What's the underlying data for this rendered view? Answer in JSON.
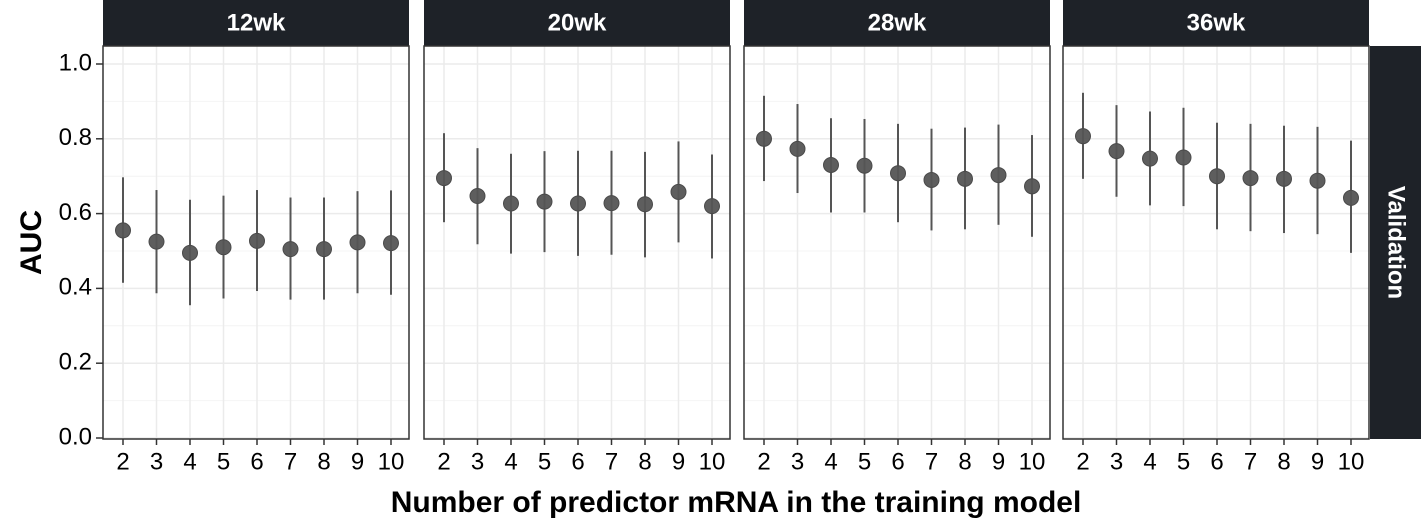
{
  "chart_data": {
    "type": "scatter",
    "title": "",
    "xlabel": "Number of predictor mRNA in the training model",
    "ylabel": "AUC",
    "row_strip": "Validation",
    "ylim": [
      0,
      1.05
    ],
    "y_ticks": [
      "0.0",
      "0.2",
      "0.4",
      "0.6",
      "0.8",
      "1.0"
    ],
    "categories": [
      "2",
      "3",
      "4",
      "5",
      "6",
      "7",
      "8",
      "9",
      "10"
    ],
    "grid": true,
    "error_bars": true,
    "colors": {
      "point": "#555555",
      "strip_bg": "#1e2228",
      "strip_text": "#ffffff",
      "grid": "#ebebeb"
    },
    "panels": [
      {
        "label": "12wk",
        "values": [
          0.555,
          0.525,
          0.495,
          0.51,
          0.527,
          0.505,
          0.505,
          0.523,
          0.521
        ],
        "lower": [
          0.415,
          0.387,
          0.355,
          0.373,
          0.393,
          0.37,
          0.37,
          0.387,
          0.383
        ],
        "upper": [
          0.697,
          0.663,
          0.637,
          0.648,
          0.663,
          0.643,
          0.643,
          0.66,
          0.662
        ]
      },
      {
        "label": "20wk",
        "values": [
          0.695,
          0.647,
          0.627,
          0.632,
          0.627,
          0.628,
          0.625,
          0.658,
          0.62
        ],
        "lower": [
          0.577,
          0.518,
          0.493,
          0.497,
          0.487,
          0.49,
          0.483,
          0.523,
          0.48
        ],
        "upper": [
          0.815,
          0.775,
          0.76,
          0.767,
          0.768,
          0.768,
          0.765,
          0.793,
          0.758
        ]
      },
      {
        "label": "28wk",
        "values": [
          0.8,
          0.773,
          0.73,
          0.728,
          0.708,
          0.69,
          0.693,
          0.703,
          0.673
        ],
        "lower": [
          0.687,
          0.655,
          0.603,
          0.603,
          0.577,
          0.555,
          0.558,
          0.57,
          0.538
        ],
        "upper": [
          0.915,
          0.893,
          0.855,
          0.853,
          0.84,
          0.827,
          0.83,
          0.838,
          0.81
        ]
      },
      {
        "label": "36wk",
        "values": [
          0.807,
          0.767,
          0.747,
          0.75,
          0.7,
          0.695,
          0.693,
          0.688,
          0.642
        ],
        "lower": [
          0.693,
          0.645,
          0.622,
          0.62,
          0.558,
          0.553,
          0.548,
          0.545,
          0.495
        ],
        "upper": [
          0.923,
          0.89,
          0.873,
          0.883,
          0.843,
          0.84,
          0.835,
          0.832,
          0.795
        ]
      }
    ]
  }
}
